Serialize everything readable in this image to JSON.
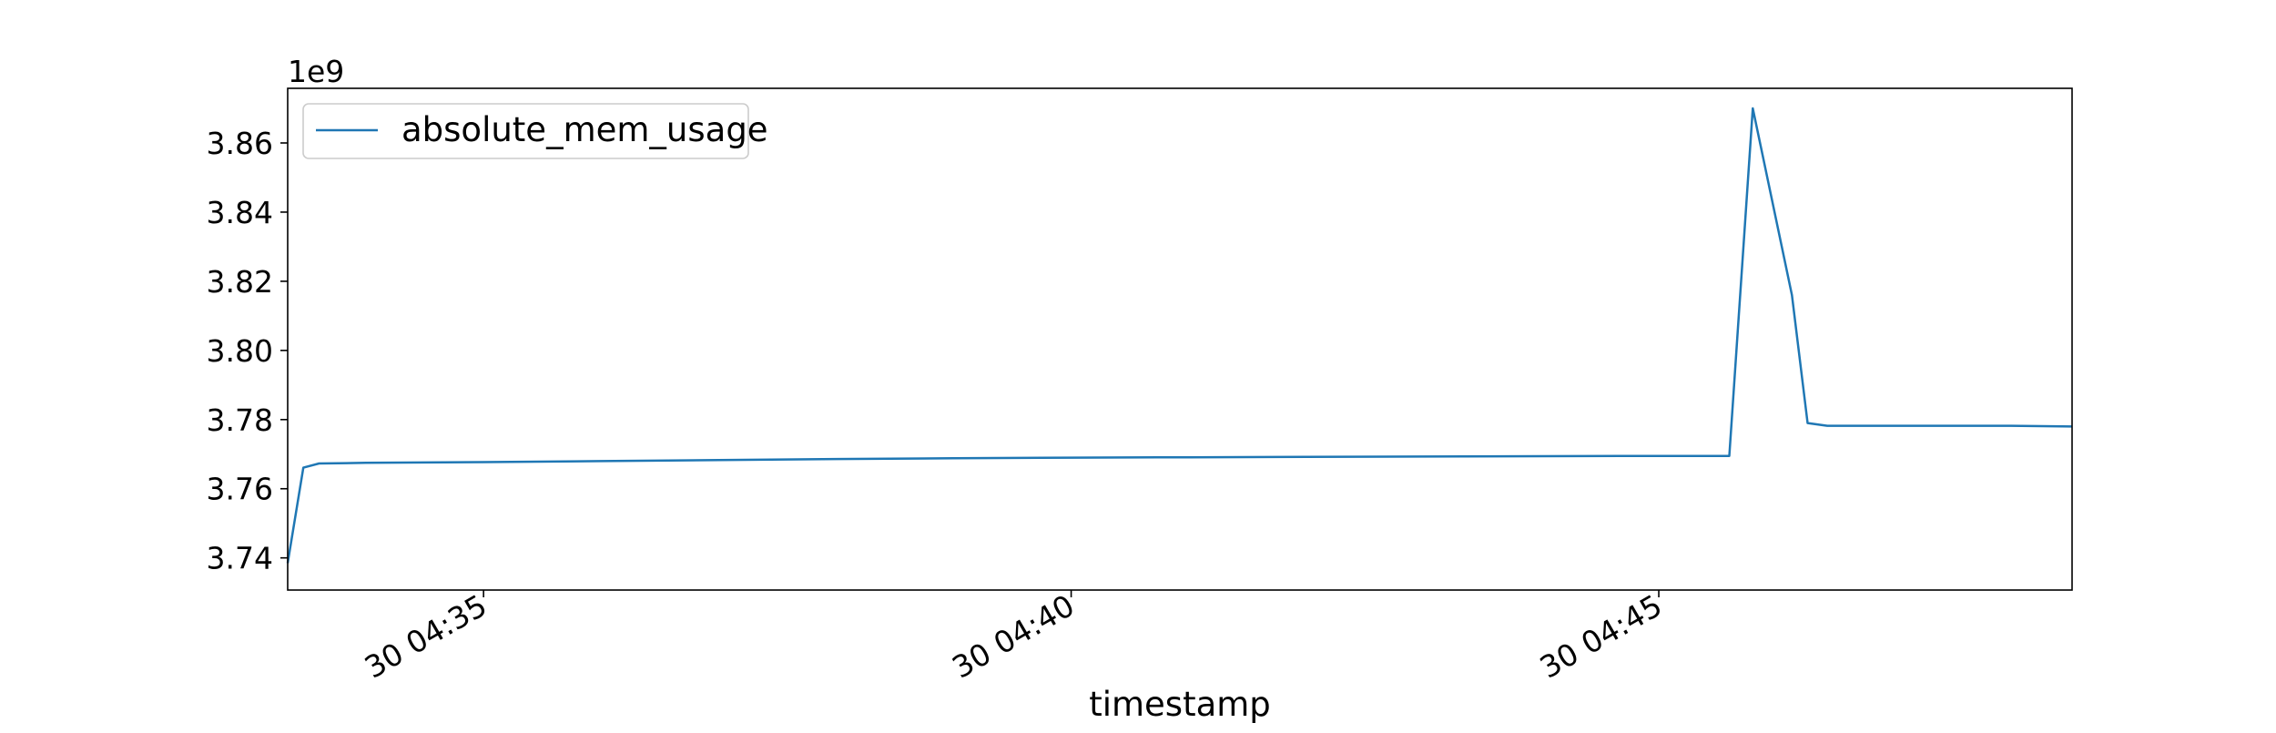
{
  "chart_data": {
    "type": "line",
    "title": "",
    "xlabel": "timestamp",
    "ylabel": "",
    "y_offset_label": "1e9",
    "y_unit_multiplier": 1000000000,
    "xlim": [
      "30 04:33:20",
      "30 04:48:31"
    ],
    "ylim": [
      3.7307,
      3.8758
    ],
    "x_ticks": [
      {
        "label": "30 04:35",
        "value": "30 04:35:00"
      },
      {
        "label": "30 04:40",
        "value": "30 04:40:00"
      },
      {
        "label": "30 04:45",
        "value": "30 04:45:00"
      }
    ],
    "y_ticks": [
      {
        "label": "3.74",
        "value": 3.74
      },
      {
        "label": "3.76",
        "value": 3.76
      },
      {
        "label": "3.78",
        "value": 3.78
      },
      {
        "label": "3.80",
        "value": 3.8
      },
      {
        "label": "3.82",
        "value": 3.82
      },
      {
        "label": "3.84",
        "value": 3.84
      },
      {
        "label": "3.86",
        "value": 3.86
      }
    ],
    "grid": false,
    "legend": {
      "position": "top-left",
      "entries": [
        "absolute_mem_usage"
      ]
    },
    "series": [
      {
        "name": "absolute_mem_usage",
        "color": "#1f77b4",
        "points": [
          {
            "x": "30 04:33:20",
            "y": 3.7385
          },
          {
            "x": "30 04:33:28",
            "y": 3.7661
          },
          {
            "x": "30 04:33:36",
            "y": 3.7673
          },
          {
            "x": "30 04:34:00",
            "y": 3.7675
          },
          {
            "x": "30 04:35:00",
            "y": 3.7677
          },
          {
            "x": "30 04:36:00",
            "y": 3.768
          },
          {
            "x": "30 04:37:00",
            "y": 3.7683
          },
          {
            "x": "30 04:38:00",
            "y": 3.7686
          },
          {
            "x": "30 04:39:00",
            "y": 3.7688
          },
          {
            "x": "30 04:40:00",
            "y": 3.769
          },
          {
            "x": "30 04:41:00",
            "y": 3.7691
          },
          {
            "x": "30 04:42:00",
            "y": 3.7692
          },
          {
            "x": "30 04:43:00",
            "y": 3.7693
          },
          {
            "x": "30 04:44:00",
            "y": 3.7694
          },
          {
            "x": "30 04:45:00",
            "y": 3.7695
          },
          {
            "x": "30 04:45:36",
            "y": 3.7695
          },
          {
            "x": "30 04:45:48",
            "y": 3.87
          },
          {
            "x": "30 04:46:08",
            "y": 3.816
          },
          {
            "x": "30 04:46:16",
            "y": 3.779
          },
          {
            "x": "30 04:46:26",
            "y": 3.7782
          },
          {
            "x": "30 04:47:00",
            "y": 3.7782
          },
          {
            "x": "30 04:48:00",
            "y": 3.7782
          },
          {
            "x": "30 04:48:31",
            "y": 3.778
          }
        ]
      }
    ]
  }
}
